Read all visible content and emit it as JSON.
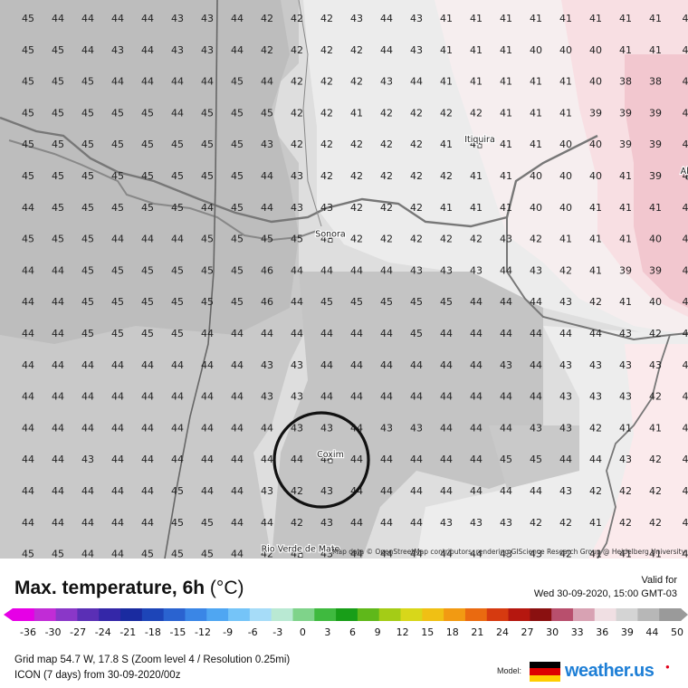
{
  "title": {
    "main": "Max. temperature, 6h",
    "unit": "(°C)"
  },
  "valid": {
    "label": "Valid for",
    "datetime": "Wed 30-09-2020, 15:00 GMT-03"
  },
  "attribution": "Map data © OpenStreetMap contributors, rendering GIScience Research Group @ Heidelberg University",
  "places": [
    {
      "name": "Itiquira",
      "col": 15,
      "row": 4
    },
    {
      "name": "Sonora",
      "col": 10,
      "row": 7
    },
    {
      "name": "Coxim",
      "col": 10,
      "row": 14
    },
    {
      "name": "Alto",
      "col": 22,
      "row": 5
    },
    {
      "name": "Rio Verde de Mato",
      "col": 9,
      "row": 17
    }
  ],
  "highlight": {
    "name": "Coxim",
    "type": "circle-marker"
  },
  "grid": {
    "rows": [
      [
        "45",
        "44",
        "44",
        "44",
        "44",
        "43",
        "43",
        "44",
        "42",
        "42",
        "42",
        "43",
        "44",
        "43",
        "41",
        "41",
        "41",
        "41",
        "41",
        "41",
        "41",
        "41",
        "4"
      ],
      [
        "45",
        "45",
        "44",
        "43",
        "44",
        "43",
        "43",
        "44",
        "42",
        "42",
        "42",
        "42",
        "44",
        "43",
        "41",
        "41",
        "41",
        "40",
        "40",
        "40",
        "41",
        "41",
        "4"
      ],
      [
        "45",
        "45",
        "45",
        "44",
        "44",
        "44",
        "44",
        "45",
        "44",
        "42",
        "42",
        "42",
        "43",
        "44",
        "41",
        "41",
        "41",
        "41",
        "41",
        "40",
        "38",
        "38",
        "4"
      ],
      [
        "45",
        "45",
        "45",
        "45",
        "45",
        "44",
        "45",
        "45",
        "45",
        "42",
        "42",
        "41",
        "42",
        "42",
        "42",
        "42",
        "41",
        "41",
        "41",
        "39",
        "39",
        "39",
        "4"
      ],
      [
        "45",
        "45",
        "45",
        "45",
        "45",
        "45",
        "45",
        "45",
        "43",
        "42",
        "42",
        "42",
        "42",
        "42",
        "41",
        "41",
        "41",
        "41",
        "40",
        "40",
        "39",
        "39",
        "4"
      ],
      [
        "45",
        "45",
        "45",
        "45",
        "45",
        "45",
        "45",
        "45",
        "44",
        "43",
        "42",
        "42",
        "42",
        "42",
        "42",
        "41",
        "41",
        "40",
        "40",
        "40",
        "41",
        "39",
        "4"
      ],
      [
        "44",
        "45",
        "45",
        "45",
        "45",
        "45",
        "44",
        "45",
        "44",
        "43",
        "43",
        "42",
        "42",
        "42",
        "41",
        "41",
        "41",
        "40",
        "40",
        "41",
        "41",
        "41",
        "4"
      ],
      [
        "45",
        "45",
        "45",
        "44",
        "44",
        "44",
        "45",
        "45",
        "45",
        "45",
        "43",
        "42",
        "42",
        "42",
        "42",
        "42",
        "43",
        "42",
        "41",
        "41",
        "41",
        "40",
        "4"
      ],
      [
        "44",
        "44",
        "45",
        "45",
        "45",
        "45",
        "45",
        "45",
        "46",
        "44",
        "44",
        "44",
        "44",
        "43",
        "43",
        "43",
        "44",
        "43",
        "42",
        "41",
        "39",
        "39",
        "4"
      ],
      [
        "44",
        "44",
        "45",
        "45",
        "45",
        "45",
        "45",
        "45",
        "46",
        "44",
        "45",
        "45",
        "45",
        "45",
        "45",
        "44",
        "44",
        "44",
        "43",
        "42",
        "41",
        "40",
        "4"
      ],
      [
        "44",
        "44",
        "45",
        "45",
        "45",
        "45",
        "44",
        "44",
        "44",
        "44",
        "44",
        "44",
        "44",
        "45",
        "44",
        "44",
        "44",
        "44",
        "44",
        "44",
        "43",
        "42",
        "4"
      ],
      [
        "44",
        "44",
        "44",
        "44",
        "44",
        "44",
        "44",
        "44",
        "43",
        "43",
        "44",
        "44",
        "44",
        "44",
        "44",
        "44",
        "43",
        "44",
        "43",
        "43",
        "43",
        "43",
        "4"
      ],
      [
        "44",
        "44",
        "44",
        "44",
        "44",
        "44",
        "44",
        "44",
        "43",
        "43",
        "44",
        "44",
        "44",
        "44",
        "44",
        "44",
        "44",
        "44",
        "43",
        "43",
        "43",
        "42",
        "4"
      ],
      [
        "44",
        "44",
        "44",
        "44",
        "44",
        "44",
        "44",
        "44",
        "44",
        "43",
        "43",
        "44",
        "43",
        "43",
        "44",
        "44",
        "44",
        "43",
        "43",
        "42",
        "41",
        "41",
        "4"
      ],
      [
        "44",
        "44",
        "43",
        "44",
        "44",
        "44",
        "44",
        "44",
        "44",
        "44",
        "44",
        "44",
        "44",
        "44",
        "44",
        "44",
        "45",
        "45",
        "44",
        "44",
        "43",
        "42",
        "4"
      ],
      [
        "44",
        "44",
        "44",
        "44",
        "44",
        "45",
        "44",
        "44",
        "43",
        "42",
        "43",
        "44",
        "44",
        "44",
        "44",
        "44",
        "44",
        "44",
        "43",
        "42",
        "42",
        "42",
        "4"
      ],
      [
        "44",
        "44",
        "44",
        "44",
        "44",
        "45",
        "45",
        "44",
        "44",
        "42",
        "43",
        "44",
        "44",
        "44",
        "43",
        "43",
        "43",
        "42",
        "42",
        "41",
        "42",
        "42",
        "4"
      ],
      [
        "45",
        "45",
        "44",
        "44",
        "45",
        "45",
        "45",
        "44",
        "42",
        "42",
        "43",
        "44",
        "44",
        "44",
        "44",
        "44",
        "43",
        "43",
        "42",
        "41",
        "41",
        "41",
        "4"
      ]
    ]
  },
  "legend": {
    "ticks": [
      "-36",
      "-30",
      "-27",
      "-24",
      "-21",
      "-18",
      "-15",
      "-12",
      "-9",
      "-6",
      "-3",
      "0",
      "3",
      "6",
      "9",
      "12",
      "15",
      "18",
      "21",
      "24",
      "27",
      "30",
      "33",
      "36",
      "39",
      "44",
      "50"
    ],
    "colors": [
      "#e600e6",
      "#c12cd6",
      "#8a37c8",
      "#5a2fb5",
      "#3427a8",
      "#1a2ba0",
      "#1d45b8",
      "#2a63d0",
      "#3a86e6",
      "#4fa6f2",
      "#75c4f8",
      "#a6dcf8",
      "#b9e9d3",
      "#7fd38a",
      "#3fba3f",
      "#189e18",
      "#5fb81a",
      "#a4cc16",
      "#d8d71a",
      "#f0c014",
      "#f29a12",
      "#ea6a10",
      "#d63a10",
      "#b5170f",
      "#8a1010",
      "#b84f6d",
      "#d8a2b3",
      "#f0dfe3",
      "#d4d4d4",
      "#b7b7b7",
      "#9a9a9a"
    ]
  },
  "footer": {
    "grid_info": "Grid map 54.7 W, 17.8 S (Zoom level 4 / Resolution 0.25mi)",
    "model_info": "ICON (7 days) from  30-09-2020/00z",
    "model_label": "Model:",
    "brand": "weather.us"
  }
}
